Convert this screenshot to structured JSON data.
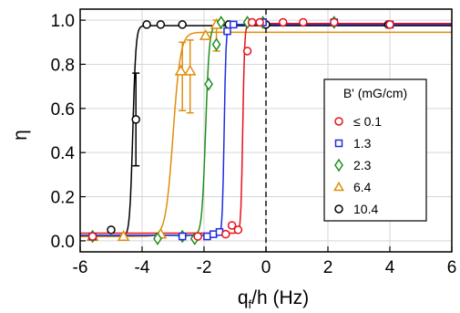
{
  "chart_data": {
    "type": "scatter",
    "xlabel_main": "q",
    "xlabel_sub": "f",
    "xlabel_rest": "/h (Hz)",
    "ylabel": "η",
    "xlim": [
      -6,
      6
    ],
    "ylim": [
      -0.05,
      1.05
    ],
    "xticks": [
      -6,
      -4,
      -2,
      0,
      2,
      4,
      6
    ],
    "yticks": [
      0.0,
      0.2,
      0.4,
      0.6,
      0.8,
      1.0
    ],
    "xtick_labels": [
      "-6",
      "-4",
      "-2",
      "0",
      "2",
      "4",
      "6"
    ],
    "ytick_labels": [
      "0.0",
      "0.2",
      "0.4",
      "0.6",
      "0.8",
      "1.0"
    ],
    "grid": true,
    "vline_x": 0,
    "legend": {
      "title": "B' (mG/cm)",
      "position": "right"
    },
    "series": [
      {
        "name": "≤ 0.1",
        "color": "#e8101a",
        "marker": "circle",
        "fit": {
          "x0": -0.75,
          "w": 0.03,
          "low": 0.035,
          "high": 0.985
        },
        "points": [
          {
            "x": -5.6,
            "y": 0.02
          },
          {
            "x": -2.2,
            "y": 0.02
          },
          {
            "x": -1.3,
            "y": 0.03
          },
          {
            "x": -1.1,
            "y": 0.07
          },
          {
            "x": -0.9,
            "y": 0.05
          },
          {
            "x": -0.6,
            "y": 0.86
          },
          {
            "x": -0.45,
            "y": 0.99
          },
          {
            "x": -0.2,
            "y": 0.99
          },
          {
            "x": 0.55,
            "y": 0.99
          },
          {
            "x": 1.2,
            "y": 0.99
          },
          {
            "x": 2.2,
            "y": 0.99
          },
          {
            "x": 4.0,
            "y": 0.98
          }
        ]
      },
      {
        "name": "1.3",
        "color": "#1f2ce0",
        "marker": "square",
        "fit": {
          "x0": -1.35,
          "w": 0.03,
          "low": 0.025,
          "high": 0.98
        },
        "points": [
          {
            "x": -5.6,
            "y": 0.02
          },
          {
            "x": -2.7,
            "y": 0.02
          },
          {
            "x": -1.9,
            "y": 0.02
          },
          {
            "x": -1.7,
            "y": 0.03
          },
          {
            "x": -1.5,
            "y": 0.04
          },
          {
            "x": -1.25,
            "y": 0.95
          },
          {
            "x": -1.05,
            "y": 0.98
          },
          {
            "x": -0.1,
            "y": 0.99
          },
          {
            "x": 2.2,
            "y": 0.99
          },
          {
            "x": 4.0,
            "y": 0.98
          }
        ]
      },
      {
        "name": "2.3",
        "color": "#1f8f1f",
        "marker": "diamond",
        "fit": {
          "x0": -1.95,
          "w": 0.06,
          "low": 0.025,
          "high": 0.98
        },
        "points": [
          {
            "x": -5.6,
            "y": 0.02
          },
          {
            "x": -3.5,
            "y": 0.01
          },
          {
            "x": -2.7,
            "y": 0.02
          },
          {
            "x": -2.3,
            "y": 0.01
          },
          {
            "x": -1.85,
            "y": 0.71
          },
          {
            "x": -1.6,
            "y": 0.89
          },
          {
            "x": -1.45,
            "y": 0.99
          },
          {
            "x": -0.6,
            "y": 0.99
          },
          {
            "x": -0.1,
            "y": 0.99
          },
          {
            "x": 2.2,
            "y": 0.99
          }
        ]
      },
      {
        "name": "6.4",
        "color": "#e08e0b",
        "marker": "triangle",
        "fit": {
          "x0": -3.0,
          "w": 0.12,
          "low": 0.02,
          "high": 0.945
        },
        "points": [
          {
            "x": -5.6,
            "y": 0.02
          },
          {
            "x": -4.6,
            "y": 0.02
          },
          {
            "x": -3.4,
            "y": 0.03
          },
          {
            "x": -2.75,
            "y": 0.77
          },
          {
            "x": -2.45,
            "y": 0.77
          },
          {
            "x": -1.95,
            "y": 0.93
          },
          {
            "x": -1.6,
            "y": 0.98
          }
        ],
        "error_bars": [
          {
            "x": -2.7,
            "low": 0.59,
            "high": 0.9
          },
          {
            "x": -2.45,
            "low": 0.58,
            "high": 0.91
          },
          {
            "x": -1.6,
            "low": 0.86,
            "high": 1.0
          }
        ]
      },
      {
        "name": "10.4",
        "color": "#000000",
        "marker": "circle",
        "fit": {
          "x0": -4.3,
          "w": 0.05,
          "low": 0.02,
          "high": 0.975
        },
        "points": [
          {
            "x": -5.6,
            "y": 0.02
          },
          {
            "x": -5.0,
            "y": 0.05
          },
          {
            "x": -4.2,
            "y": 0.55
          },
          {
            "x": -3.85,
            "y": 0.98
          },
          {
            "x": -3.4,
            "y": 0.98
          },
          {
            "x": -2.7,
            "y": 0.98
          },
          {
            "x": -1.2,
            "y": 0.98
          },
          {
            "x": 0.0,
            "y": 0.98
          },
          {
            "x": 3.95,
            "y": 0.98
          }
        ],
        "error_bars": [
          {
            "x": -4.2,
            "low": 0.34,
            "high": 0.76
          }
        ]
      }
    ]
  }
}
